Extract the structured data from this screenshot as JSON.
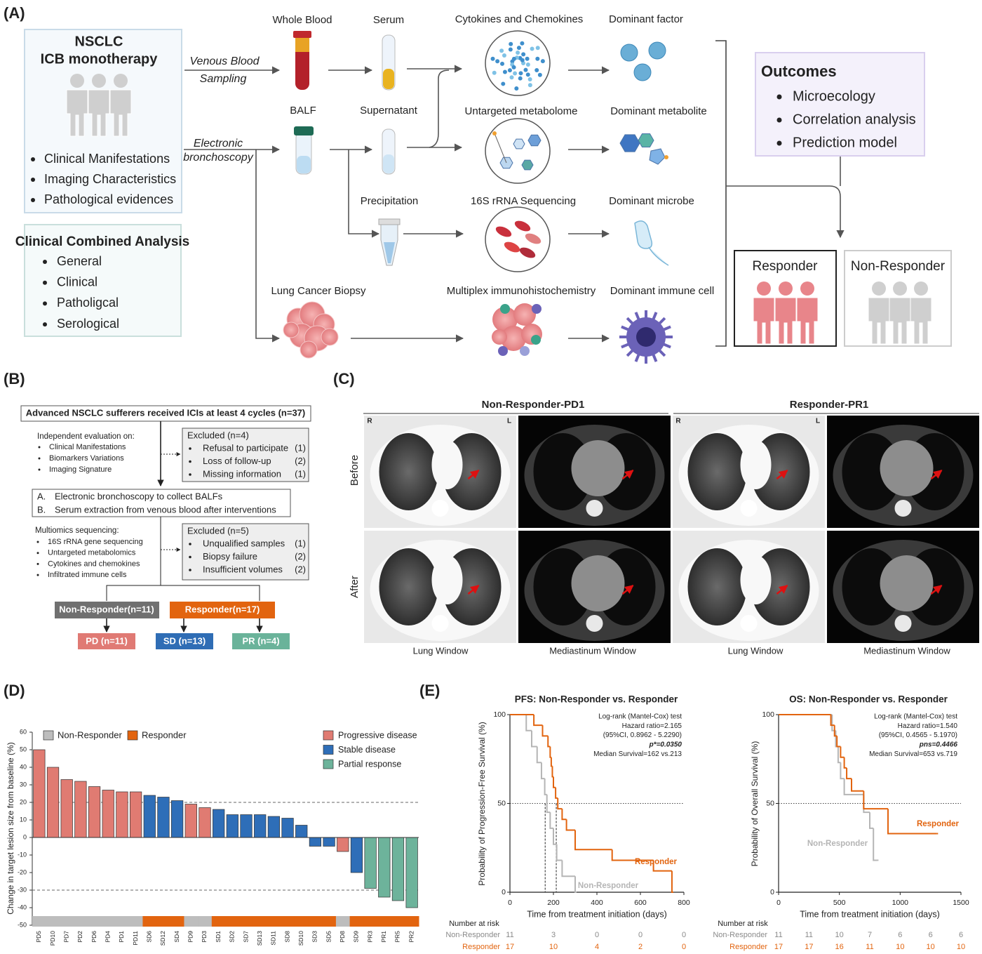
{
  "panel_labels": [
    "(A)",
    "(B)",
    "(C)",
    "(D)",
    "(E)"
  ],
  "panel_a": {
    "cohort_title": [
      "NSCLC",
      "ICB monotherapy"
    ],
    "cohort_items": [
      "Clinical Manifestations",
      "Imaging Characteristics",
      "Pathological evidences"
    ],
    "combined_title": "Clinical Combined Analysis",
    "combined_items": [
      "General",
      "Clinical",
      "Patholigcal",
      "Serological"
    ],
    "routes": [
      [
        "Venous Blood",
        "Sampling"
      ],
      [
        "Electronic",
        "bronchoscopy"
      ]
    ],
    "samples": [
      "Whole Blood",
      "Serum",
      "BALF",
      "Supernatant",
      "Precipitation",
      "Lung Cancer Biopsy"
    ],
    "assays": [
      "Cytokines and Chemokines",
      "Untargeted metabolome",
      "16S rRNA Sequencing",
      "Multiplex immunohistochemistry"
    ],
    "dominant": [
      "Dominant factor",
      "Dominant metabolite",
      "Dominant microbe",
      "Dominant immune cell"
    ],
    "outcomes_title": "Outcomes",
    "outcomes_items": [
      "Microecology",
      "Correlation analysis",
      "Prediction model"
    ],
    "groups": [
      "Responder",
      "Non-Responder"
    ]
  },
  "panel_b": {
    "cohort": "Advanced NSCLC sufferers received ICIs at least 4 cycles (n=37)",
    "evaluation_title": "Independent evaluation on:",
    "evaluation_items": [
      "Clinical Manifestations",
      "Biomarkers Variations",
      "Imaging Signature"
    ],
    "exclusions": [
      {
        "title": "Excluded (n=4)",
        "items": [
          {
            "text": "Refusal to participate",
            "count": "(1)"
          },
          {
            "text": "Loss of follow-up",
            "count": "(2)"
          },
          {
            "text": "Missing information",
            "count": "(1)"
          }
        ]
      },
      {
        "title": "Excluded (n=5)",
        "items": [
          {
            "text": "Unqualified samples",
            "count": "(1)"
          },
          {
            "text": "Biopsy failure",
            "count": "(2)"
          },
          {
            "text": "Insufficient volumes",
            "count": "(2)"
          }
        ]
      }
    ],
    "steps": [
      {
        "letter": "A.",
        "text": "Electronic bronchoscopy to collect BALFs"
      },
      {
        "letter": "B.",
        "text": "Serum extraction from venous blood after interventions"
      }
    ],
    "multiomics_title": "Multiomics sequencing:",
    "multiomics_items": [
      "16S rRNA gene sequencing",
      "Untargeted metabolomics",
      "Cytokines and chemokines",
      "Infiltrated immune cells"
    ],
    "groups": [
      "Non-Responder(n=11)",
      "Responder(n=17)"
    ],
    "outcomes": [
      "PD (n=11)",
      "SD (n=13)",
      "PR (n=4)"
    ]
  },
  "panel_c": {
    "columns": [
      "Non-Responder-PD1",
      "Responder-PR1"
    ],
    "rows": [
      "Before",
      "After"
    ],
    "orientation": [
      "R",
      "L"
    ],
    "windows": [
      "Lung Window",
      "Mediastinum Window"
    ]
  },
  "chart_data": [
    {
      "type": "waterfall",
      "ylabel": "Change in target lesion size from baseline (%)",
      "categories": [
        "PD5",
        "PD10",
        "PD7",
        "PD2",
        "PD6",
        "PD4",
        "PD1",
        "PD11",
        "SD6",
        "SD12",
        "SD4",
        "PD9",
        "PD3",
        "SD1",
        "SD2",
        "SD7",
        "SD13",
        "SD11",
        "SD8",
        "SD10",
        "SD3",
        "SD5",
        "PD8",
        "SD9",
        "PR3",
        "PR1",
        "PR5",
        "PR2"
      ],
      "series": [
        {
          "name": "Progressive disease",
          "color": "#e07b72",
          "values": [
            50,
            40,
            33,
            32,
            29,
            27,
            26,
            26,
            null,
            null,
            null,
            19,
            17,
            null,
            null,
            null,
            null,
            null,
            null,
            null,
            null,
            null,
            -8,
            null,
            null,
            null,
            null,
            null
          ]
        },
        {
          "name": "Stable disease",
          "color": "#2e6eb8",
          "values": [
            null,
            null,
            null,
            null,
            null,
            null,
            null,
            null,
            24,
            23,
            21,
            null,
            null,
            16,
            13,
            13,
            13,
            12,
            11,
            7,
            -5,
            -5,
            null,
            -20,
            null,
            null,
            null,
            null
          ]
        },
        {
          "name": "Partial response",
          "color": "#6db39b",
          "values": [
            null,
            null,
            null,
            null,
            null,
            null,
            null,
            null,
            null,
            null,
            null,
            null,
            null,
            null,
            null,
            null,
            null,
            null,
            null,
            null,
            null,
            null,
            null,
            null,
            -29,
            -34,
            -36,
            -40
          ]
        }
      ],
      "groups": [
        {
          "name": "Non-Responder",
          "color": "#bdbdbd"
        },
        {
          "name": "Responder",
          "color": "#e2640f"
        }
      ],
      "category_groups": [
        "Non-Responder",
        "Non-Responder",
        "Non-Responder",
        "Non-Responder",
        "Non-Responder",
        "Non-Responder",
        "Non-Responder",
        "Non-Responder",
        "Responder",
        "Responder",
        "Responder",
        "Non-Responder",
        "Non-Responder",
        "Responder",
        "Responder",
        "Responder",
        "Responder",
        "Responder",
        "Responder",
        "Responder",
        "Responder",
        "Responder",
        "Non-Responder",
        "Responder",
        "Responder",
        "Responder",
        "Responder",
        "Responder"
      ],
      "ylim": [
        -50,
        60
      ],
      "yticks": [
        -50,
        -40,
        -30,
        -20,
        -10,
        0,
        10,
        20,
        30,
        40,
        50,
        60
      ],
      "reference_lines": [
        20,
        -30
      ]
    },
    {
      "type": "step",
      "title": "PFS: Non-Responder vs. Responder",
      "xlabel": "Time from treatment initiation (days)",
      "ylabel": "Probability of Progression-Free Survival (%)",
      "xlim": [
        0,
        800
      ],
      "xticks": [
        0,
        200,
        400,
        600,
        800
      ],
      "ylim": [
        0,
        100
      ],
      "yticks": [
        0,
        50,
        100
      ],
      "reference_y": 50,
      "median_lines": [
        162,
        213
      ],
      "annotations": [
        "Log-rank (Mantel-Cox) test",
        "Hazard ratio=2.165",
        "(95%CI, 0.8962 - 5.2290)",
        "p*=0.0350",
        "Median Survival=162 vs.213"
      ],
      "series": [
        {
          "name": "Non-Responder",
          "color": "#b5b5b5",
          "x": [
            0,
            75,
            100,
            125,
            145,
            160,
            170,
            185,
            200,
            215,
            240,
            300
          ],
          "values": [
            100,
            91,
            82,
            73,
            64,
            55,
            45,
            36,
            27,
            18,
            9,
            0
          ]
        },
        {
          "name": "Responder",
          "color": "#e2640f",
          "x": [
            0,
            110,
            150,
            175,
            185,
            190,
            195,
            200,
            210,
            220,
            240,
            260,
            300,
            470,
            660,
            745
          ],
          "values": [
            100,
            94,
            88,
            82,
            76,
            71,
            65,
            59,
            53,
            47,
            41,
            35,
            24,
            18,
            12,
            0
          ]
        }
      ],
      "risk_title": "Number at risk",
      "risk_table": [
        [
          11,
          3,
          0,
          0,
          0
        ],
        [
          17,
          10,
          4,
          2,
          0
        ]
      ]
    },
    {
      "type": "step",
      "title": "OS: Non-Responder vs. Responder",
      "xlabel": "Time from treatment initiation (days)",
      "ylabel": "Probability of Overall Survival (%)",
      "xlim": [
        0,
        1500
      ],
      "xticks": [
        0,
        500,
        1000,
        1500
      ],
      "ylim": [
        0,
        100
      ],
      "yticks": [
        0,
        50,
        100
      ],
      "reference_y": 50,
      "annotations": [
        "Log-rank (Mantel-Cox) test",
        "Hazard ratio=1.540",
        "(95%CI, 0.4565 - 5.1970)",
        "pns=0.4466",
        "Median Survival=653 vs.719"
      ],
      "series": [
        {
          "name": "Non-Responder",
          "color": "#b5b5b5",
          "x": [
            0,
            440,
            470,
            490,
            510,
            540,
            700,
            750,
            780,
            810
          ],
          "values": [
            100,
            91,
            82,
            73,
            64,
            55,
            45,
            36,
            18,
            18
          ]
        },
        {
          "name": "Responder",
          "color": "#e2640f",
          "x": [
            0,
            430,
            460,
            480,
            510,
            540,
            560,
            600,
            700,
            900,
            1300
          ],
          "values": [
            100,
            94,
            88,
            82,
            76,
            70,
            64,
            57,
            47,
            33,
            33
          ]
        }
      ],
      "risk_title": "Number at risk",
      "risk_table": [
        [
          11,
          11,
          10,
          7,
          6,
          6,
          6
        ],
        [
          17,
          17,
          16,
          11,
          10,
          10,
          10
        ]
      ]
    }
  ]
}
